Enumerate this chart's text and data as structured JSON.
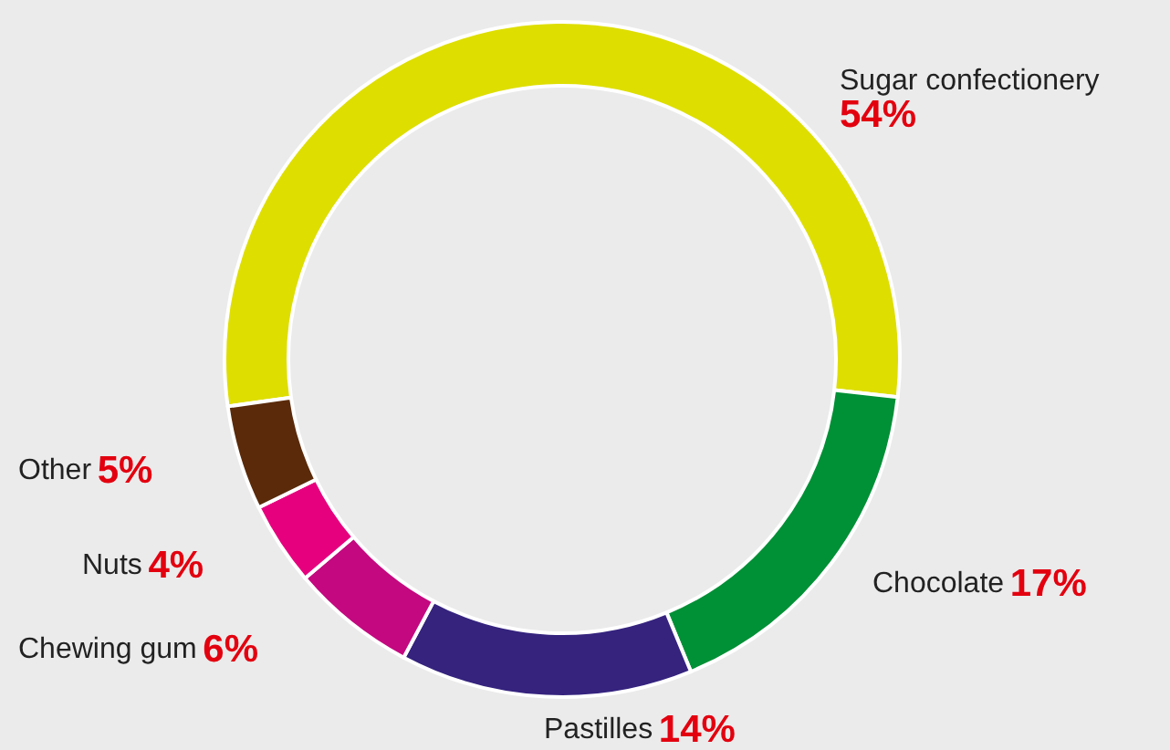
{
  "chart_data": {
    "type": "donut",
    "categories": [
      "Sugar confectionery",
      "Chocolate",
      "Pastilles",
      "Chewing gum",
      "Nuts",
      "Other"
    ],
    "values": [
      54,
      17,
      14,
      6,
      4,
      5
    ],
    "value_labels": [
      "54%",
      "17%",
      "14%",
      "6%",
      "4%",
      "5%"
    ],
    "colors": [
      "#dede00",
      "#009036",
      "#35237e",
      "#c4087f",
      "#e6007e",
      "#5a2a0a"
    ],
    "legend": false
  }
}
